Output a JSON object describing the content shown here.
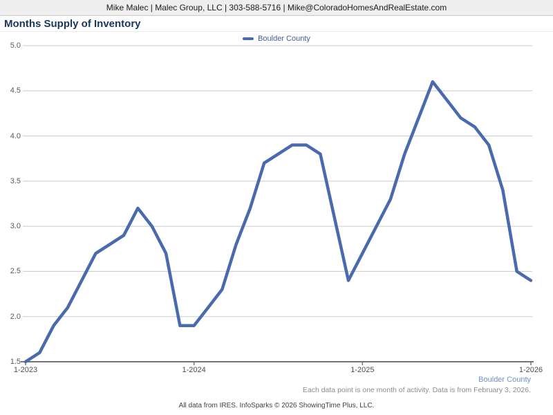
{
  "header": {
    "contact_line": "Mike Malec | Malec Group, LLC | 303-588-5716 | Mike@ColoradoHomesAndRealEstate.com"
  },
  "title": "Months Supply of Inventory",
  "legend": {
    "label": "Boulder County"
  },
  "footer": {
    "series_label": "Boulder County",
    "note": "Each data point is one month of activity. Data is from February 3, 2026.",
    "attribution": "All data from IRES. InfoSparks © 2026 ShowingTime Plus, LLC."
  },
  "colors": {
    "line": "#4a6aae",
    "title": "#17375e",
    "legend_text": "#3e5f9e",
    "series_caption": "#6d92c5",
    "gridline": "#cacaca",
    "axis": "#737373",
    "y_label": "#595959",
    "x_label": "#4d4d4d",
    "header_bg": "#eeeeee",
    "note_gray": "#8c8c8c"
  },
  "chart_data": {
    "type": "line",
    "title": "Months Supply of Inventory",
    "xlabel": "",
    "ylabel": "",
    "ylim": [
      1.5,
      5.0
    ],
    "grid": true,
    "legend_position": "top-center",
    "x": [
      "1-2023",
      "2-2023",
      "3-2023",
      "4-2023",
      "5-2023",
      "6-2023",
      "7-2023",
      "8-2023",
      "9-2023",
      "10-2023",
      "11-2023",
      "12-2023",
      "1-2024",
      "2-2024",
      "3-2024",
      "4-2024",
      "5-2024",
      "6-2024",
      "7-2024",
      "8-2024",
      "9-2024",
      "10-2024",
      "11-2024",
      "12-2024",
      "1-2025",
      "2-2025",
      "3-2025",
      "4-2025",
      "5-2025",
      "6-2025",
      "7-2025",
      "8-2025",
      "9-2025",
      "10-2025",
      "11-2025",
      "12-2025",
      "1-2026"
    ],
    "series": [
      {
        "name": "Boulder County",
        "values": [
          1.5,
          1.6,
          1.9,
          2.1,
          2.4,
          2.7,
          2.8,
          2.9,
          3.2,
          3.0,
          2.7,
          1.9,
          1.9,
          2.1,
          2.3,
          2.8,
          3.2,
          3.7,
          3.8,
          3.9,
          3.9,
          3.8,
          3.1,
          2.4,
          2.7,
          3.0,
          3.3,
          3.8,
          4.2,
          4.6,
          4.4,
          4.2,
          4.1,
          3.9,
          3.4,
          2.5,
          2.4
        ]
      }
    ],
    "y_ticks": [
      "1.5",
      "2.0",
      "2.5",
      "3.0",
      "3.5",
      "4.0",
      "4.5",
      "5.0"
    ],
    "x_tick_labels": [
      "1-2023",
      "1-2024",
      "1-2025",
      "1-2026"
    ],
    "x_tick_indices": [
      0,
      12,
      24,
      36
    ]
  }
}
